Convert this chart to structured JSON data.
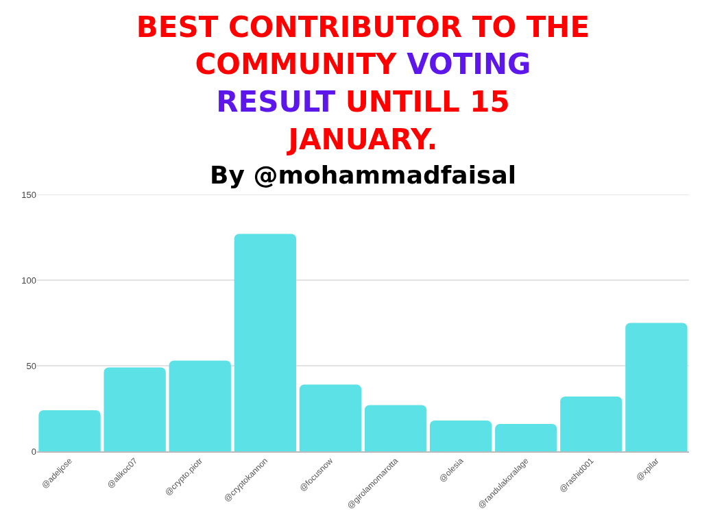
{
  "chart_data": {
    "type": "bar",
    "title": "BEST CONTRIBUTOR TO THE COMMUNITY VOTING RESULT UNTILL 15 JANUARY.",
    "subtitle": "By @mohammadfaisal",
    "categories": [
      "@adeljose",
      "@alikoc07",
      "@crypto.piotr",
      "@cryptokannon",
      "@focusnow",
      "@girolamomarotta",
      "@olesia",
      "@randulakoralage",
      "@rashid001",
      "@xpilar"
    ],
    "values": [
      24,
      49,
      53,
      127,
      39,
      27,
      18,
      16,
      32,
      75
    ],
    "color": "#5ce1e6",
    "ylim": [
      0,
      150
    ],
    "yticks": [
      0,
      50,
      100,
      150
    ],
    "grid": "y"
  }
}
